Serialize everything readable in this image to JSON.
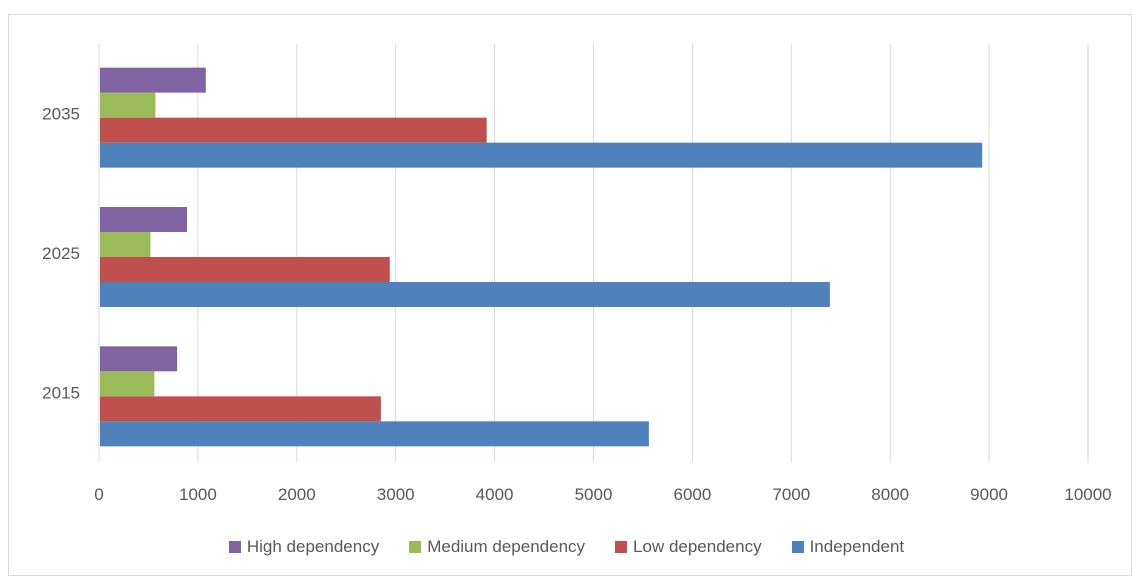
{
  "chart_data": {
    "type": "bar",
    "orientation": "horizontal",
    "categories": [
      "2015",
      "2025",
      "2035"
    ],
    "series": [
      {
        "name": "Independent",
        "color": "#4f81bd",
        "values": [
          5550,
          7380,
          8920
        ]
      },
      {
        "name": "Low dependency",
        "color": "#c0504d",
        "values": [
          2840,
          2930,
          3910
        ]
      },
      {
        "name": "Medium dependency",
        "color": "#9bbb59",
        "values": [
          550,
          510,
          560
        ]
      },
      {
        "name": "High dependency",
        "color": "#8064a2",
        "values": [
          780,
          880,
          1070
        ]
      }
    ],
    "xlim": [
      0,
      10000
    ],
    "x_ticks": [
      "0",
      "1000",
      "2000",
      "3000",
      "4000",
      "5000",
      "6000",
      "7000",
      "8000",
      "9000",
      "10000"
    ],
    "grid": "vertical",
    "legend_position": "bottom",
    "legend_order": [
      "High dependency",
      "Medium dependency",
      "Low dependency",
      "Independent"
    ],
    "title": "",
    "xlabel": "",
    "ylabel": ""
  }
}
